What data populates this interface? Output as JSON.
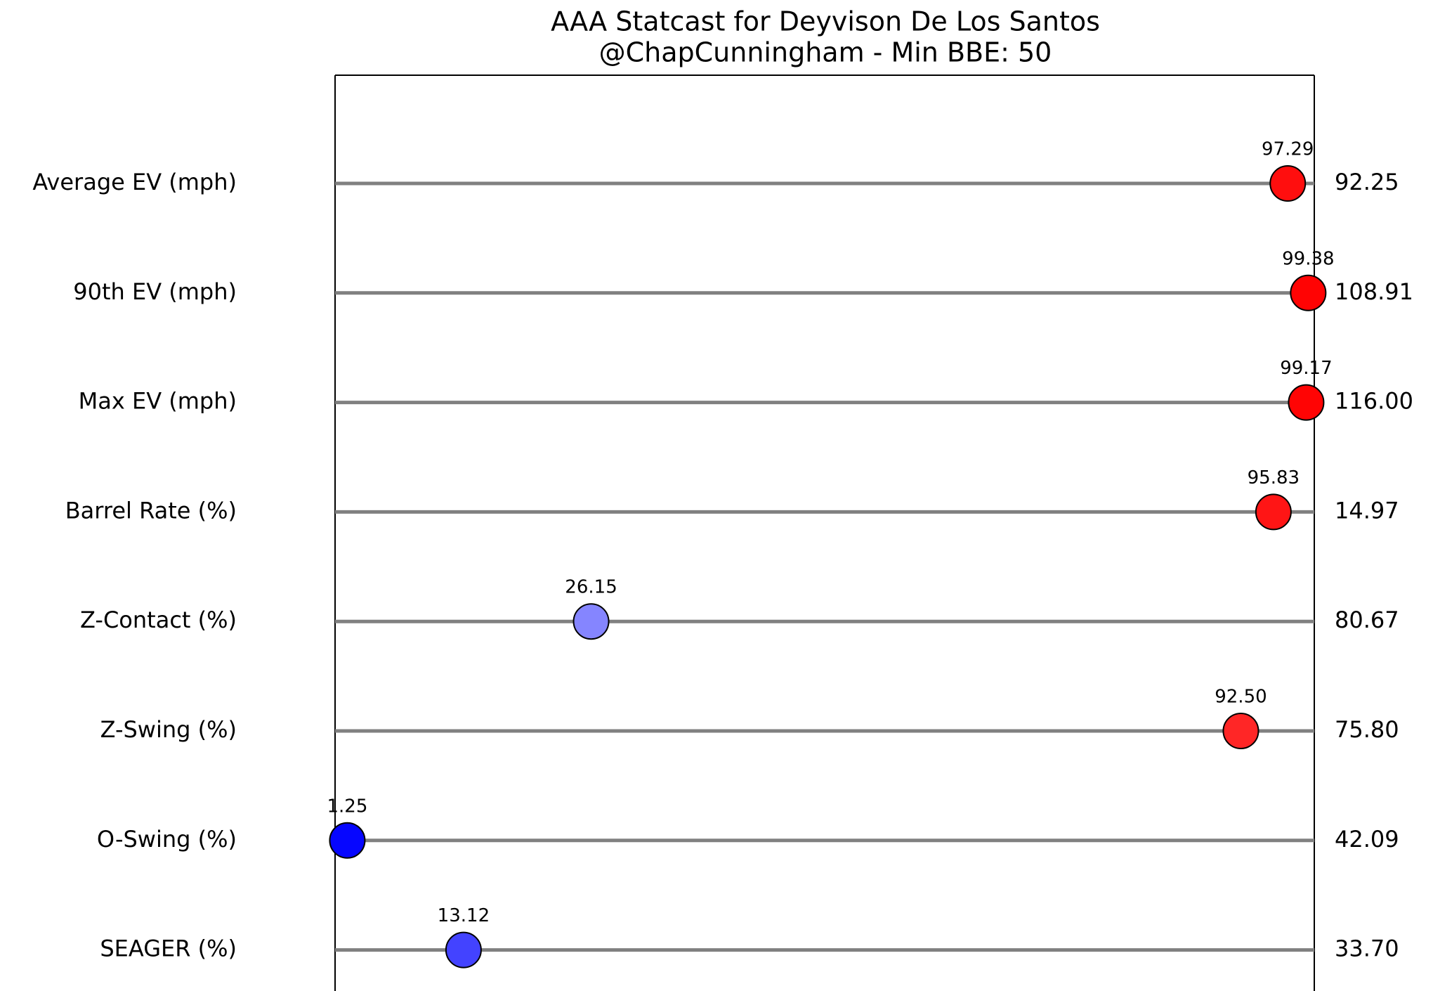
{
  "chart_data": {
    "type": "dot",
    "title": "AAA Statcast for Deyvison De Los Santos",
    "subtitle": "@ChapCunningham - Min BBE: 50",
    "categories": [
      "Average EV (mph)",
      "90th EV (mph)",
      "Max EV (mph)",
      "Barrel Rate (%)",
      "Z-Contact (%)",
      "Z-Swing (%)",
      "O-Swing (%)",
      "SEAGER (%)"
    ],
    "values": [
      97.29,
      99.38,
      99.17,
      95.83,
      26.15,
      92.5,
      1.25,
      13.12
    ],
    "value_labels": [
      "97.29",
      "99.38",
      "99.17",
      "95.83",
      "26.15",
      "92.50",
      "1.25",
      "13.12"
    ],
    "stat_labels": [
      "92.25",
      "108.91",
      "116.00",
      "14.97",
      "80.67",
      "75.80",
      "42.09",
      "33.70"
    ],
    "xlim": [
      0,
      100
    ],
    "colormap": "bwr",
    "line_color": "#808080"
  }
}
